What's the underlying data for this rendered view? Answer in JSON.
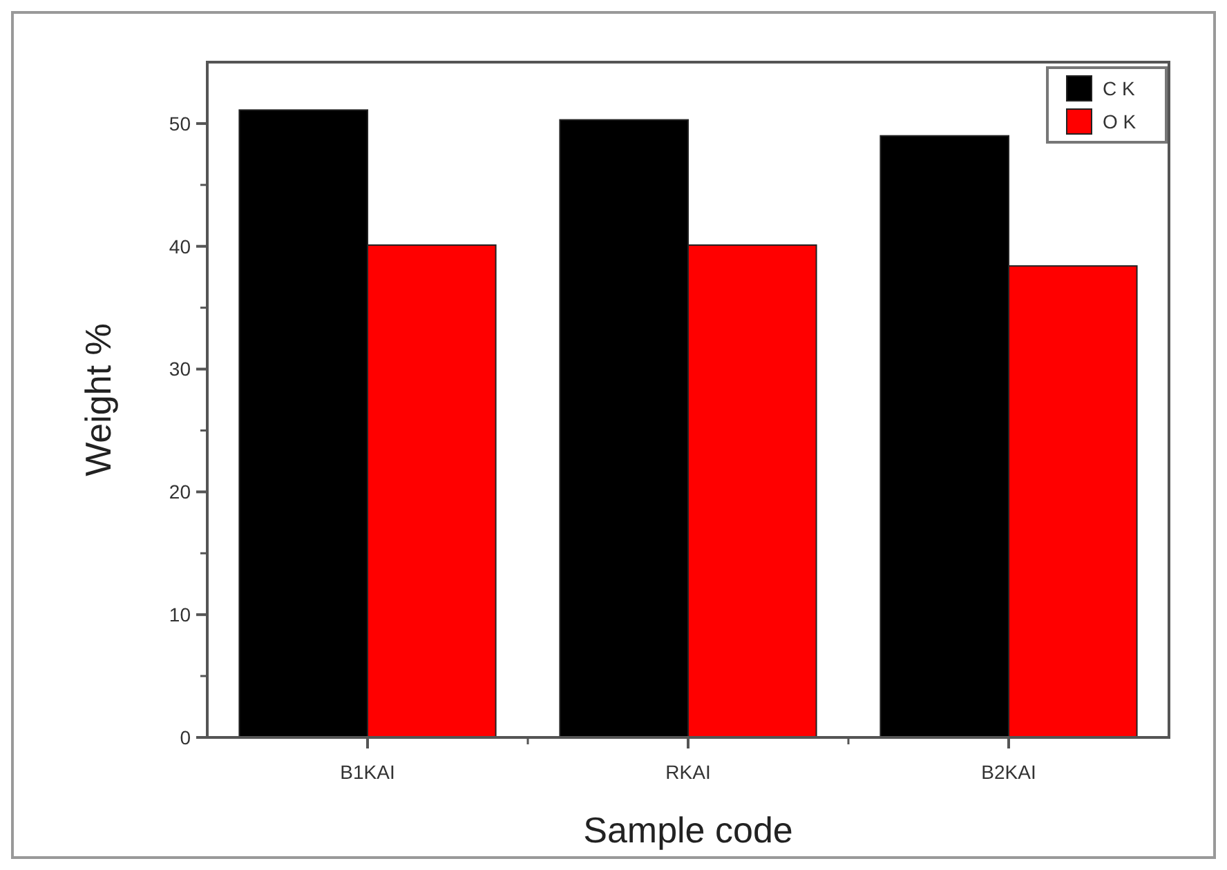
{
  "chart_data": {
    "type": "bar",
    "xlabel": "Sample code",
    "ylabel": "Weight %",
    "categories": [
      "B1KAI",
      "RKAI",
      "B2KAI"
    ],
    "series": [
      {
        "name": "C K",
        "color": "#000000",
        "values": [
          51.1,
          50.3,
          49.0
        ]
      },
      {
        "name": "O K",
        "color": "#ff0000",
        "values": [
          40.1,
          40.1,
          38.4
        ]
      }
    ],
    "ylim": [
      0,
      55
    ],
    "yticks": [
      0,
      10,
      20,
      30,
      40,
      50
    ],
    "grid": false,
    "legend": "top right"
  }
}
